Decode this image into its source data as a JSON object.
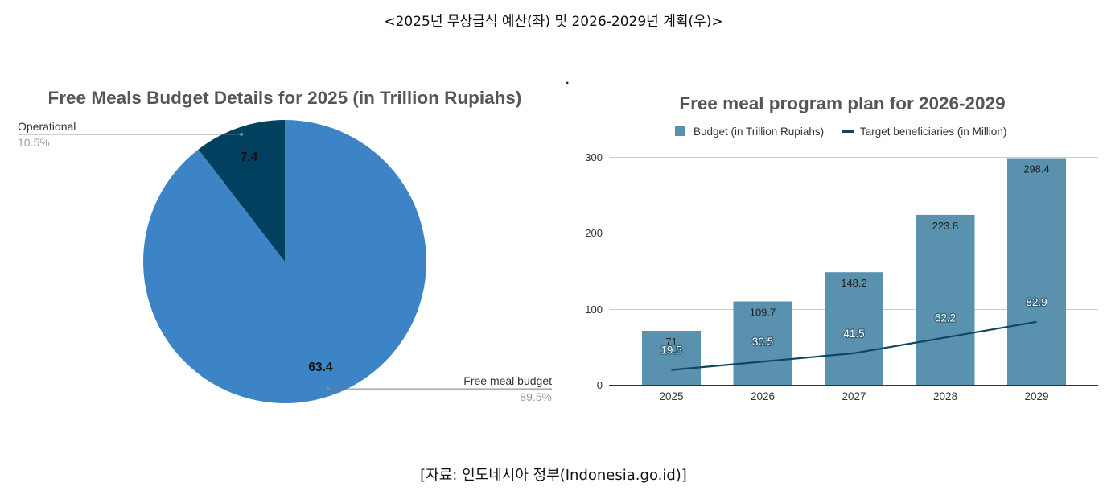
{
  "header": {
    "title": "<2025년 무상급식 예산(좌) 및 2026-2029년 계획(우)>"
  },
  "stray_mark": ".",
  "footer": {
    "source": "[자료: 인도네시아 정부(Indonesia.go.id)]"
  },
  "chart_data": [
    {
      "type": "pie",
      "title": "Free Meals Budget Details for 2025 (in Trillion Rupiahs)",
      "slices": [
        {
          "label": "Free meal budget",
          "value": 63.4,
          "percent": "89.5%",
          "color": "#3d84c6"
        },
        {
          "label": "Operational",
          "value": 7.4,
          "percent": "10.5%",
          "color": "#02405f"
        }
      ]
    },
    {
      "type": "bar",
      "title": "Free meal program plan for 2026-2029",
      "categories": [
        "2025",
        "2026",
        "2027",
        "2028",
        "2029"
      ],
      "series": [
        {
          "name": "Budget (in Trillion Rupiahs)",
          "type": "bar",
          "color": "#5a91ae",
          "values": [
            71,
            109.7,
            148.2,
            223.8,
            298.4
          ]
        },
        {
          "name": "Target beneficiaries (in Million)",
          "type": "line",
          "color": "#0b4862",
          "values": [
            19.5,
            30.5,
            41.5,
            62.2,
            82.9
          ]
        }
      ],
      "yticks": [
        0,
        100,
        200,
        300
      ],
      "ylim": [
        0,
        300
      ],
      "grid": true,
      "legend": "top"
    }
  ]
}
